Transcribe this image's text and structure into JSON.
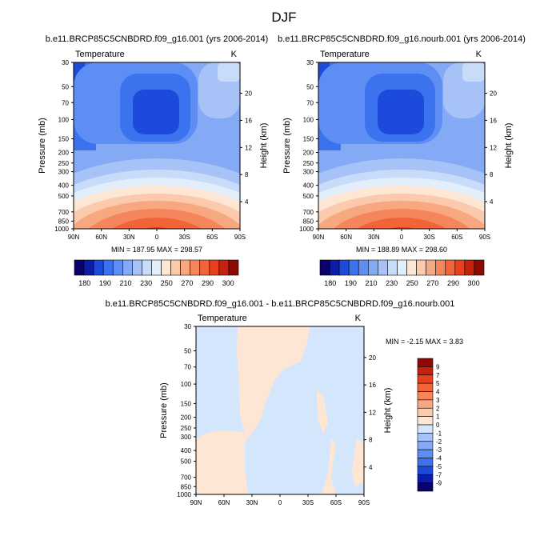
{
  "figure_title": "DJF",
  "panel_titles": {
    "left": "b.e11.BRCP85C5CNBDRD.f09_g16.001 (yrs 2006-2014)",
    "right": "b.e11.BRCP85C5CNBDRD.f09_g16.nourb.001 (yrs 2006-2014)",
    "diff": "b.e11.BRCP85C5CNBDRD.f09_g16.001 - b.e11.BRCP85C5CNBDRD.f09_g16.nourb.001"
  },
  "chart_data": [
    {
      "id": "left",
      "type": "heatmap",
      "title": "b.e11.BRCP85C5CNBDRD.f09_g16.001 (yrs 2006-2014)",
      "variable_label": "Temperature",
      "units": "K",
      "xlabel": "",
      "ylabel": "Pressure (mb)",
      "ylabel_right": "Height (km)",
      "x_ticks": [
        "90N",
        "60N",
        "30N",
        "0",
        "30S",
        "60S",
        "90S"
      ],
      "y_ticks": [
        "30",
        "50",
        "70",
        "100",
        "150",
        "200",
        "250",
        "300",
        "400",
        "500",
        "700",
        "850",
        "1000"
      ],
      "y_ticks_right": [
        "4",
        "8",
        "12",
        "16",
        "20"
      ],
      "stats": "MIN = 187.95  MAX = 298.57",
      "min": 187.95,
      "max": 298.57
    },
    {
      "id": "right",
      "type": "heatmap",
      "title": "b.e11.BRCP85C5CNBDRD.f09_g16.nourb.001 (yrs 2006-2014)",
      "variable_label": "Temperature",
      "units": "K",
      "xlabel": "",
      "ylabel": "Pressure (mb)",
      "ylabel_right": "Height (km)",
      "x_ticks": [
        "90N",
        "60N",
        "30N",
        "0",
        "30S",
        "60S",
        "90S"
      ],
      "y_ticks": [
        "30",
        "50",
        "70",
        "100",
        "150",
        "200",
        "250",
        "300",
        "400",
        "500",
        "700",
        "850",
        "1000"
      ],
      "y_ticks_right": [
        "4",
        "8",
        "12",
        "16",
        "20"
      ],
      "stats": "MIN = 188.89  MAX = 298.60",
      "min": 188.89,
      "max": 298.6
    },
    {
      "id": "diff",
      "type": "heatmap",
      "title": "b.e11.BRCP85C5CNBDRD.f09_g16.001 - b.e11.BRCP85C5CNBDRD.f09_g16.nourb.001",
      "variable_label": "Temperature",
      "units": "K",
      "xlabel": "",
      "ylabel": "Pressure (mb)",
      "ylabel_right": "Height (km)",
      "x_ticks": [
        "90N",
        "60N",
        "30N",
        "0",
        "30S",
        "60S",
        "90S"
      ],
      "y_ticks": [
        "30",
        "50",
        "70",
        "100",
        "150",
        "200",
        "250",
        "300",
        "400",
        "500",
        "700",
        "850",
        "1000"
      ],
      "y_ticks_right": [
        "4",
        "8",
        "12",
        "16",
        "20"
      ],
      "stats": "MIN =  -2.15  MAX =   3.83",
      "min": -2.15,
      "max": 3.83
    }
  ],
  "colorbar_abs": {
    "labels": [
      "180",
      "190",
      "210",
      "230",
      "250",
      "270",
      "290",
      "300"
    ],
    "colors": [
      "#08026a",
      "#0c1ba8",
      "#1c4bdc",
      "#3b73ef",
      "#5e8ef3",
      "#84a9f5",
      "#a6c2f6",
      "#c8dcf9",
      "#e3eefb",
      "#fde7d4",
      "#fbc9ac",
      "#f8a880",
      "#f5855b",
      "#f26337",
      "#e8401c",
      "#c3220e",
      "#8c0a05"
    ]
  },
  "colorbar_diff": {
    "labels": [
      "9",
      "7",
      "5",
      "4",
      "3",
      "2",
      "1",
      "0",
      "-1",
      "-2",
      "-3",
      "-4",
      "-5",
      "-7",
      "-9"
    ],
    "colors": [
      "#8c0a05",
      "#c3220e",
      "#e8401c",
      "#f26337",
      "#f5855b",
      "#f8a880",
      "#fbc9ac",
      "#fde7d4",
      "#d4e6fb",
      "#a6c2f6",
      "#84a9f5",
      "#5e8ef3",
      "#3b73ef",
      "#1c4bdc",
      "#0c1ba8",
      "#08026a"
    ]
  }
}
